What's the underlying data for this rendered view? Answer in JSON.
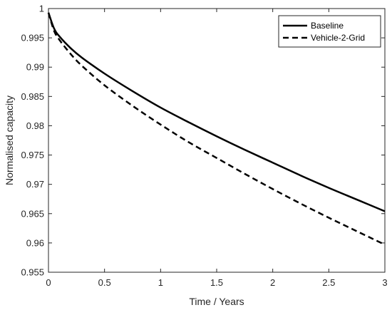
{
  "chart_data": {
    "type": "line",
    "title": "",
    "xlabel": "Time / Years",
    "ylabel": "Normalised capacity",
    "xlim": [
      0,
      3
    ],
    "ylim": [
      0.955,
      1.0
    ],
    "xticks": [
      0,
      0.5,
      1,
      1.5,
      2,
      2.5,
      3
    ],
    "xtick_labels": [
      "0",
      "0.5",
      "1",
      "1.5",
      "2",
      "2.5",
      "3"
    ],
    "yticks": [
      0.955,
      0.96,
      0.965,
      0.97,
      0.975,
      0.98,
      0.985,
      0.99,
      0.995,
      1.0
    ],
    "ytick_labels": [
      "0.955",
      "0.96",
      "0.965",
      "0.97",
      "0.975",
      "0.98",
      "0.985",
      "0.99",
      "0.995",
      "1"
    ],
    "grid": false,
    "legend_position": "top-right",
    "series": [
      {
        "name": "Baseline",
        "style": "solid",
        "color": "#000000",
        "x": [
          0,
          0.05,
          0.1,
          0.2,
          0.3,
          0.5,
          0.75,
          1.0,
          1.25,
          1.5,
          1.75,
          2.0,
          2.25,
          2.5,
          2.75,
          3.0
        ],
        "y": [
          0.9993,
          0.9966,
          0.9952,
          0.9932,
          0.9916,
          0.9889,
          0.9859,
          0.9831,
          0.9806,
          0.9782,
          0.9759,
          0.9737,
          0.9715,
          0.9694,
          0.9674,
          0.9654
        ]
      },
      {
        "name": "Vehicle-2-Grid",
        "style": "dashed",
        "color": "#000000",
        "x": [
          0,
          0.05,
          0.1,
          0.2,
          0.3,
          0.5,
          0.75,
          1.0,
          1.25,
          1.5,
          1.75,
          2.0,
          2.25,
          2.5,
          2.75,
          3.0
        ],
        "y": [
          0.9993,
          0.9962,
          0.9946,
          0.9922,
          0.9902,
          0.9869,
          0.9834,
          0.9802,
          0.9772,
          0.9745,
          0.9718,
          0.9692,
          0.9667,
          0.9643,
          0.962,
          0.9597
        ]
      }
    ]
  }
}
